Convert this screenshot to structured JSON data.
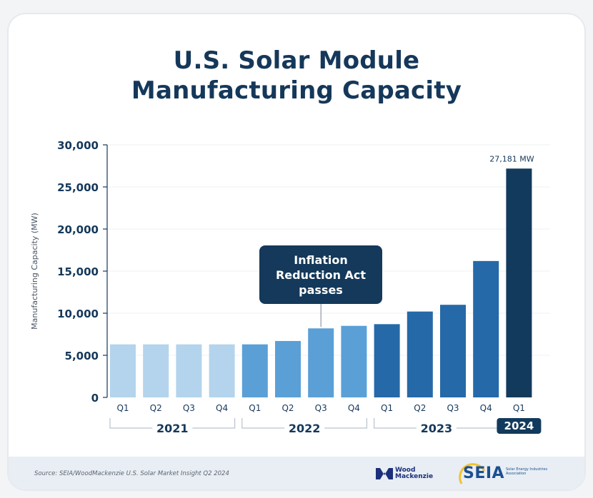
{
  "title_line1": "U.S. Solar Module",
  "title_line2": "Manufacturing Capacity",
  "source": "Source: SEIA/WoodMackenzie U.S. Solar Market Insight Q2 2024",
  "logos": {
    "woodmac_line1": "Wood",
    "woodmac_line2": "Mackenzie",
    "seia": "SEIA",
    "seia_sub": "Solar Energy Industries Association"
  },
  "colors": {
    "title": "#15385a",
    "y2021": "#b3d4ec",
    "y2022": "#5aa0d7",
    "y2023": "#2569a8",
    "y2024": "#123a5c",
    "callout": "#14395a"
  },
  "chart_data": {
    "type": "bar",
    "title": "U.S. Solar Module Manufacturing Capacity",
    "ylabel": "Manufacturing Capacity (MW)",
    "xlabel": "",
    "ylim": [
      0,
      30000
    ],
    "yticks": [
      0,
      5000,
      10000,
      15000,
      20000,
      25000,
      30000
    ],
    "ytick_labels": [
      "0",
      "5,000",
      "10,000",
      "15,000",
      "20,000",
      "25,000",
      "30,000"
    ],
    "grid": true,
    "categories": [
      "Q1",
      "Q2",
      "Q3",
      "Q4",
      "Q1",
      "Q2",
      "Q3",
      "Q4",
      "Q1",
      "Q2",
      "Q3",
      "Q4",
      "Q1"
    ],
    "years": [
      "2021",
      "2021",
      "2021",
      "2021",
      "2022",
      "2022",
      "2022",
      "2022",
      "2023",
      "2023",
      "2023",
      "2023",
      "2024"
    ],
    "values": [
      6300,
      6300,
      6300,
      6300,
      6300,
      6700,
      8200,
      8500,
      8700,
      10200,
      11000,
      16200,
      27181
    ],
    "year_groups": [
      {
        "label": "2021",
        "start": 0,
        "end": 3
      },
      {
        "label": "2022",
        "start": 4,
        "end": 7
      },
      {
        "label": "2023",
        "start": 8,
        "end": 11
      },
      {
        "label": "2024",
        "start": 12,
        "end": 12
      }
    ],
    "data_label": {
      "index": 12,
      "text": "27,181 MW"
    },
    "annotation": {
      "text_lines": [
        "Inflation",
        "Reduction Act",
        "passes"
      ],
      "points_to_index": 6
    }
  }
}
